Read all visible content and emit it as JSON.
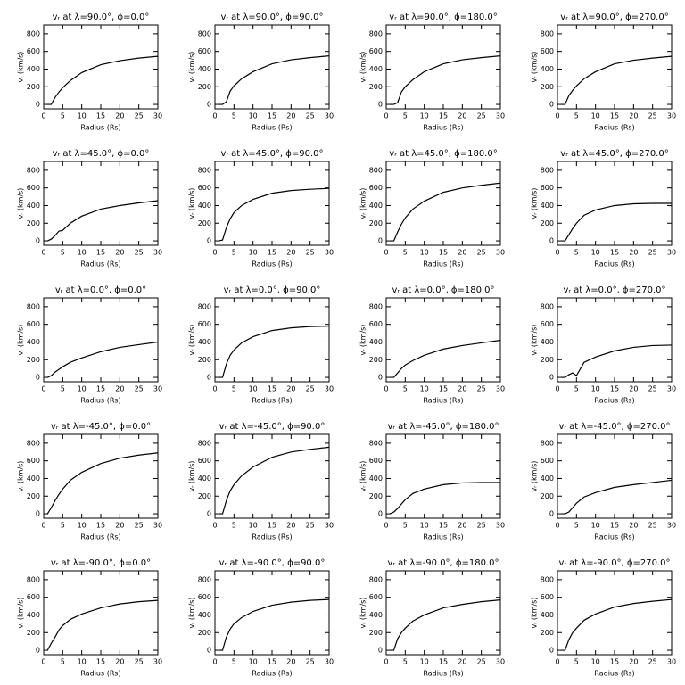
{
  "chart_data": [
    {
      "type": "line",
      "title": "vᵣ at λ=90.0°, ϕ=0.0°",
      "xlabel": "Radius (Rs)",
      "ylabel": "vᵣ (km/s)",
      "x": [
        1,
        2,
        3,
        4,
        5,
        7,
        10,
        15,
        20,
        25,
        30
      ],
      "values": [
        0,
        0,
        80,
        140,
        190,
        270,
        360,
        450,
        495,
        525,
        545
      ],
      "color": "#000000",
      "xlim": [
        0,
        30
      ],
      "ylim": [
        -50,
        900
      ],
      "xticks": [
        0,
        5,
        10,
        15,
        20,
        25,
        30
      ],
      "yticks": [
        0,
        200,
        400,
        600,
        800
      ]
    },
    {
      "type": "line",
      "title": "vᵣ at λ=90.0°, ϕ=90.0°",
      "xlabel": "Radius (Rs)",
      "ylabel": "vᵣ (km/s)",
      "x": [
        1,
        2,
        3,
        4,
        5,
        7,
        10,
        15,
        20,
        25,
        30
      ],
      "values": [
        0,
        0,
        30,
        150,
        210,
        290,
        370,
        460,
        505,
        530,
        550
      ],
      "color": "#000000",
      "xlim": [
        0,
        30
      ],
      "ylim": [
        -50,
        900
      ],
      "xticks": [
        0,
        5,
        10,
        15,
        20,
        25,
        30
      ],
      "yticks": [
        0,
        200,
        400,
        600,
        800
      ]
    },
    {
      "type": "line",
      "title": "vᵣ at λ=90.0°, ϕ=180.0°",
      "xlabel": "Radius (Rs)",
      "ylabel": "vᵣ (km/s)",
      "x": [
        1,
        2,
        3,
        4,
        5,
        7,
        10,
        15,
        20,
        25,
        30
      ],
      "values": [
        0,
        0,
        20,
        140,
        200,
        280,
        370,
        460,
        505,
        530,
        550
      ],
      "color": "#000000",
      "xlim": [
        0,
        30
      ],
      "ylim": [
        -50,
        900
      ],
      "xticks": [
        0,
        5,
        10,
        15,
        20,
        25,
        30
      ],
      "yticks": [
        0,
        200,
        400,
        600,
        800
      ]
    },
    {
      "type": "line",
      "title": "vᵣ at λ=90.0°, ϕ=270.0°",
      "xlabel": "Radius (Rs)",
      "ylabel": "vᵣ (km/s)",
      "x": [
        1,
        2,
        3,
        4,
        5,
        7,
        10,
        15,
        20,
        25,
        30
      ],
      "values": [
        0,
        0,
        100,
        160,
        210,
        290,
        370,
        460,
        500,
        525,
        545
      ],
      "color": "#000000",
      "xlim": [
        0,
        30
      ],
      "ylim": [
        -50,
        900
      ],
      "xticks": [
        0,
        5,
        10,
        15,
        20,
        25,
        30
      ],
      "yticks": [
        0,
        200,
        400,
        600,
        800
      ]
    },
    {
      "type": "line",
      "title": "vᵣ at λ=45.0°, ϕ=0.0°",
      "xlabel": "Radius (Rs)",
      "ylabel": "vᵣ (km/s)",
      "x": [
        1,
        2,
        3,
        4,
        5,
        7,
        10,
        15,
        20,
        25,
        30
      ],
      "values": [
        0,
        20,
        60,
        110,
        120,
        200,
        280,
        360,
        400,
        430,
        455
      ],
      "color": "#000000",
      "xlim": [
        0,
        30
      ],
      "ylim": [
        -50,
        900
      ],
      "xticks": [
        0,
        5,
        10,
        15,
        20,
        25,
        30
      ],
      "yticks": [
        0,
        200,
        400,
        600,
        800
      ]
    },
    {
      "type": "line",
      "title": "vᵣ at λ=45.0°, ϕ=90.0°",
      "xlabel": "Radius (Rs)",
      "ylabel": "vᵣ (km/s)",
      "x": [
        1,
        2,
        3,
        4,
        5,
        7,
        10,
        15,
        20,
        25,
        30
      ],
      "values": [
        0,
        10,
        150,
        250,
        320,
        400,
        470,
        540,
        570,
        585,
        595
      ],
      "color": "#000000",
      "xlim": [
        0,
        30
      ],
      "ylim": [
        -50,
        900
      ],
      "xticks": [
        0,
        5,
        10,
        15,
        20,
        25,
        30
      ],
      "yticks": [
        0,
        200,
        400,
        600,
        800
      ]
    },
    {
      "type": "line",
      "title": "vᵣ at λ=45.0°, ϕ=180.0°",
      "xlabel": "Radius (Rs)",
      "ylabel": "vᵣ (km/s)",
      "x": [
        1,
        2,
        3,
        4,
        5,
        7,
        10,
        15,
        20,
        25,
        30
      ],
      "values": [
        0,
        0,
        100,
        190,
        260,
        360,
        450,
        550,
        600,
        630,
        655
      ],
      "color": "#000000",
      "xlim": [
        0,
        30
      ],
      "ylim": [
        -50,
        900
      ],
      "xticks": [
        0,
        5,
        10,
        15,
        20,
        25,
        30
      ],
      "yticks": [
        0,
        200,
        400,
        600,
        800
      ]
    },
    {
      "type": "line",
      "title": "vᵣ at λ=45.0°, ϕ=270.0°",
      "xlabel": "Radius (Rs)",
      "ylabel": "vᵣ (km/s)",
      "x": [
        1,
        2,
        3,
        4,
        5,
        7,
        10,
        15,
        20,
        25,
        30
      ],
      "values": [
        0,
        0,
        70,
        140,
        200,
        290,
        350,
        400,
        420,
        425,
        425
      ],
      "color": "#000000",
      "xlim": [
        0,
        30
      ],
      "ylim": [
        -50,
        900
      ],
      "xticks": [
        0,
        5,
        10,
        15,
        20,
        25,
        30
      ],
      "yticks": [
        0,
        200,
        400,
        600,
        800
      ]
    },
    {
      "type": "line",
      "title": "vᵣ at λ=0.0°, ϕ=0.0°",
      "xlabel": "Radius (Rs)",
      "ylabel": "vᵣ (km/s)",
      "x": [
        1,
        2,
        3,
        4,
        5,
        7,
        10,
        15,
        20,
        25,
        30
      ],
      "values": [
        0,
        20,
        60,
        90,
        120,
        170,
        220,
        290,
        340,
        370,
        400
      ],
      "color": "#000000",
      "xlim": [
        0,
        30
      ],
      "ylim": [
        -50,
        900
      ],
      "xticks": [
        0,
        5,
        10,
        15,
        20,
        25,
        30
      ],
      "yticks": [
        0,
        200,
        400,
        600,
        800
      ]
    },
    {
      "type": "line",
      "title": "vᵣ at λ=0.0°, ϕ=90.0°",
      "xlabel": "Radius (Rs)",
      "ylabel": "vᵣ (km/s)",
      "x": [
        1,
        2,
        3,
        4,
        5,
        7,
        10,
        15,
        20,
        25,
        30
      ],
      "values": [
        0,
        0,
        150,
        250,
        310,
        390,
        460,
        530,
        560,
        575,
        580
      ],
      "color": "#000000",
      "xlim": [
        0,
        30
      ],
      "ylim": [
        -50,
        900
      ],
      "xticks": [
        0,
        5,
        10,
        15,
        20,
        25,
        30
      ],
      "yticks": [
        0,
        200,
        400,
        600,
        800
      ]
    },
    {
      "type": "line",
      "title": "vᵣ at λ=0.0°, ϕ=180.0°",
      "xlabel": "Radius (Rs)",
      "ylabel": "vᵣ (km/s)",
      "x": [
        1,
        2,
        3,
        4,
        5,
        7,
        10,
        15,
        20,
        25,
        30
      ],
      "values": [
        0,
        0,
        50,
        100,
        140,
        190,
        250,
        320,
        360,
        390,
        420
      ],
      "color": "#000000",
      "xlim": [
        0,
        30
      ],
      "ylim": [
        -50,
        900
      ],
      "xticks": [
        0,
        5,
        10,
        15,
        20,
        25,
        30
      ],
      "yticks": [
        0,
        200,
        400,
        600,
        800
      ]
    },
    {
      "type": "line",
      "title": "vᵣ at λ=0.0°, ϕ=270.0°",
      "xlabel": "Radius (Rs)",
      "ylabel": "vᵣ (km/s)",
      "x": [
        1,
        2,
        3,
        4,
        5,
        7,
        10,
        15,
        20,
        25,
        30
      ],
      "values": [
        0,
        0,
        30,
        50,
        20,
        170,
        230,
        300,
        340,
        360,
        365
      ],
      "color": "#000000",
      "xlim": [
        0,
        30
      ],
      "ylim": [
        -50,
        900
      ],
      "xticks": [
        0,
        5,
        10,
        15,
        20,
        25,
        30
      ],
      "yticks": [
        0,
        200,
        400,
        600,
        800
      ]
    },
    {
      "type": "line",
      "title": "vᵣ at λ=-45.0°, ϕ=0.0°",
      "xlabel": "Radius (Rs)",
      "ylabel": "vᵣ (km/s)",
      "x": [
        1,
        2,
        3,
        4,
        5,
        7,
        10,
        15,
        20,
        25,
        30
      ],
      "values": [
        0,
        70,
        150,
        220,
        280,
        380,
        470,
        570,
        630,
        665,
        690
      ],
      "color": "#000000",
      "xlim": [
        0,
        30
      ],
      "ylim": [
        -50,
        900
      ],
      "xticks": [
        0,
        5,
        10,
        15,
        20,
        25,
        30
      ],
      "yticks": [
        0,
        200,
        400,
        600,
        800
      ]
    },
    {
      "type": "line",
      "title": "vᵣ at λ=-45.0°, ϕ=90.0°",
      "xlabel": "Radius (Rs)",
      "ylabel": "vᵣ (km/s)",
      "x": [
        1,
        2,
        3,
        4,
        5,
        7,
        10,
        15,
        20,
        25,
        30
      ],
      "values": [
        0,
        0,
        150,
        260,
        330,
        430,
        530,
        640,
        700,
        730,
        755
      ],
      "color": "#000000",
      "xlim": [
        0,
        30
      ],
      "ylim": [
        -50,
        900
      ],
      "xticks": [
        0,
        5,
        10,
        15,
        20,
        25,
        30
      ],
      "yticks": [
        0,
        200,
        400,
        600,
        800
      ]
    },
    {
      "type": "line",
      "title": "vᵣ at λ=-45.0°, ϕ=180.0°",
      "xlabel": "Radius (Rs)",
      "ylabel": "vᵣ (km/s)",
      "x": [
        1,
        2,
        3,
        4,
        5,
        7,
        10,
        15,
        20,
        25,
        30
      ],
      "values": [
        0,
        20,
        60,
        110,
        160,
        230,
        280,
        330,
        350,
        355,
        355
      ],
      "color": "#000000",
      "xlim": [
        0,
        30
      ],
      "ylim": [
        -50,
        900
      ],
      "xticks": [
        0,
        5,
        10,
        15,
        20,
        25,
        30
      ],
      "yticks": [
        0,
        200,
        400,
        600,
        800
      ]
    },
    {
      "type": "line",
      "title": "vᵣ at λ=-45.0°, ϕ=270.0°",
      "xlabel": "Radius (Rs)",
      "ylabel": "vᵣ (km/s)",
      "x": [
        1,
        2,
        3,
        4,
        5,
        7,
        10,
        15,
        20,
        25,
        30
      ],
      "values": [
        0,
        0,
        20,
        70,
        120,
        190,
        240,
        300,
        330,
        355,
        380
      ],
      "color": "#000000",
      "xlim": [
        0,
        30
      ],
      "ylim": [
        -50,
        900
      ],
      "xticks": [
        0,
        5,
        10,
        15,
        20,
        25,
        30
      ],
      "yticks": [
        0,
        200,
        400,
        600,
        800
      ]
    },
    {
      "type": "line",
      "title": "vᵣ at λ=-90.0°, ϕ=0.0°",
      "xlabel": "Radius (Rs)",
      "ylabel": "vᵣ (km/s)",
      "x": [
        1,
        2,
        3,
        4,
        5,
        7,
        10,
        15,
        20,
        25,
        30
      ],
      "values": [
        0,
        80,
        150,
        230,
        280,
        350,
        410,
        480,
        525,
        550,
        565
      ],
      "color": "#000000",
      "xlim": [
        0,
        30
      ],
      "ylim": [
        -50,
        900
      ],
      "xticks": [
        0,
        5,
        10,
        15,
        20,
        25,
        30
      ],
      "yticks": [
        0,
        200,
        400,
        600,
        800
      ]
    },
    {
      "type": "line",
      "title": "vᵣ at λ=-90.0°, ϕ=90.0°",
      "xlabel": "Radius (Rs)",
      "ylabel": "vᵣ (km/s)",
      "x": [
        1,
        2,
        3,
        4,
        5,
        7,
        10,
        15,
        20,
        25,
        30
      ],
      "values": [
        0,
        0,
        150,
        240,
        300,
        370,
        440,
        510,
        545,
        565,
        575
      ],
      "color": "#000000",
      "xlim": [
        0,
        30
      ],
      "ylim": [
        -50,
        900
      ],
      "xticks": [
        0,
        5,
        10,
        15,
        20,
        25,
        30
      ],
      "yticks": [
        0,
        200,
        400,
        600,
        800
      ]
    },
    {
      "type": "line",
      "title": "vᵣ at λ=-90.0°, ϕ=180.0°",
      "xlabel": "Radius (Rs)",
      "ylabel": "vᵣ (km/s)",
      "x": [
        1,
        2,
        3,
        4,
        5,
        7,
        10,
        15,
        20,
        25,
        30
      ],
      "values": [
        0,
        0,
        130,
        200,
        250,
        330,
        400,
        480,
        520,
        550,
        570
      ],
      "color": "#000000",
      "xlim": [
        0,
        30
      ],
      "ylim": [
        -50,
        900
      ],
      "xticks": [
        0,
        5,
        10,
        15,
        20,
        25,
        30
      ],
      "yticks": [
        0,
        200,
        400,
        600,
        800
      ]
    },
    {
      "type": "line",
      "title": "vᵣ at λ=-90.0°, ϕ=270.0°",
      "xlabel": "Radius (Rs)",
      "ylabel": "vᵣ (km/s)",
      "x": [
        1,
        2,
        3,
        4,
        5,
        7,
        10,
        15,
        20,
        25,
        30
      ],
      "values": [
        0,
        0,
        120,
        200,
        250,
        340,
        410,
        490,
        530,
        555,
        575
      ],
      "color": "#000000",
      "xlim": [
        0,
        30
      ],
      "ylim": [
        -50,
        900
      ],
      "xticks": [
        0,
        5,
        10,
        15,
        20,
        25,
        30
      ],
      "yticks": [
        0,
        200,
        400,
        600,
        800
      ]
    }
  ]
}
